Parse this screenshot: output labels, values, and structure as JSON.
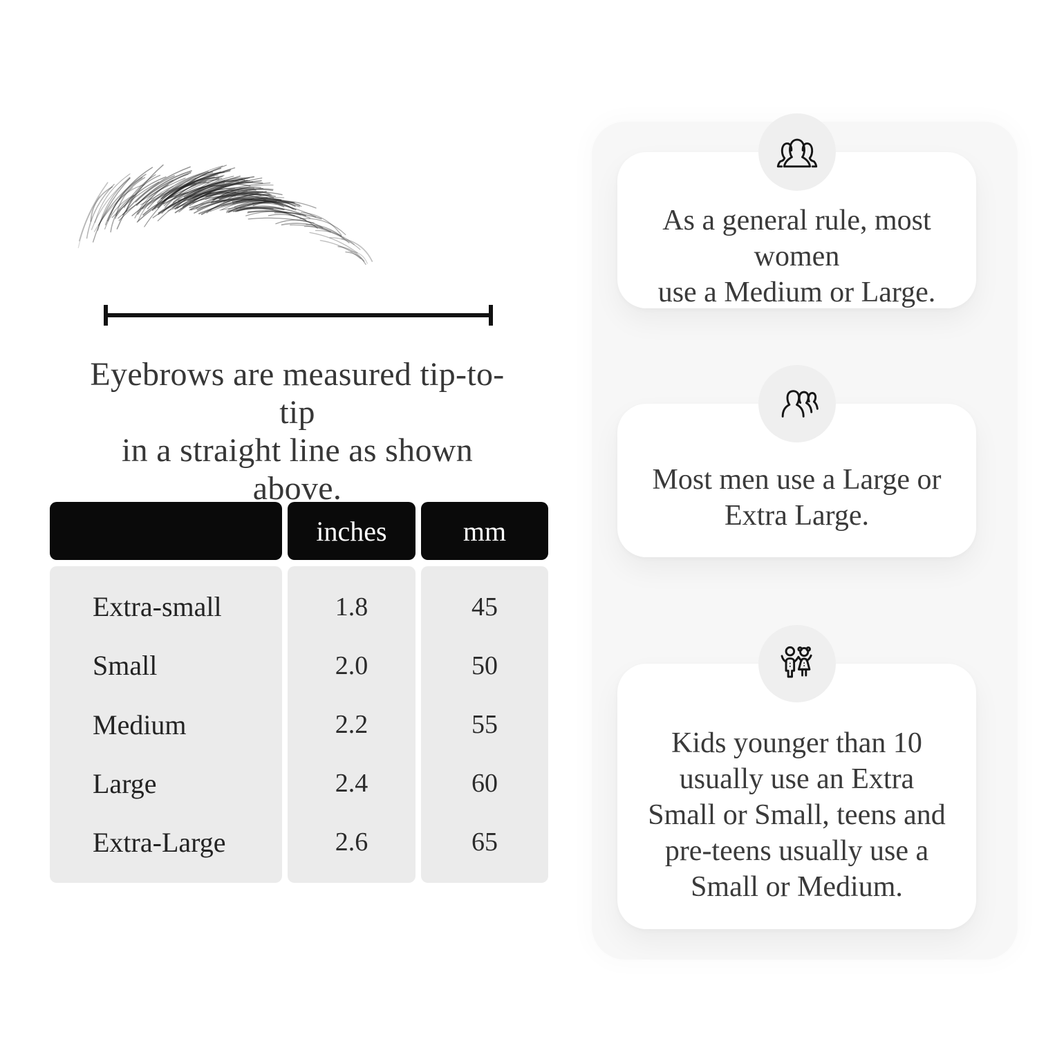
{
  "measurement_section": {
    "illustration": "eyebrow-sketch",
    "caption_line1": "Eyebrows are measured tip-to-tip",
    "caption_line2": "in a straight line as shown above."
  },
  "size_table": {
    "columns": [
      "",
      "inches",
      "mm"
    ],
    "rows": [
      {
        "label": "Extra-small",
        "inches": "1.8",
        "mm": "45"
      },
      {
        "label": "Small",
        "inches": "2.0",
        "mm": "50"
      },
      {
        "label": "Medium",
        "inches": "2.2",
        "mm": "55"
      },
      {
        "label": "Large",
        "inches": "2.4",
        "mm": "60"
      },
      {
        "label": "Extra-Large",
        "inches": "2.6",
        "mm": "65"
      }
    ]
  },
  "guide_cards": [
    {
      "icon": "women-group-icon",
      "lines": [
        "As a general rule, most women",
        "use a Medium or Large."
      ]
    },
    {
      "icon": "men-group-icon",
      "lines": [
        "Most men use a Large or",
        "Extra Large."
      ]
    },
    {
      "icon": "kids-icon",
      "lines": [
        "Kids younger than 10",
        "usually use an Extra",
        "Small or Small, teens and",
        "pre-teens usually use a",
        "Small or Medium."
      ]
    }
  ],
  "colors": {
    "page_bg": "#ffffff",
    "table_header_bg": "#0a0a0a",
    "table_header_text": "#ffffff",
    "table_body_bg": "#ebebeb",
    "card_bg": "#ffffff",
    "card_backdrop_bg": "#f7f7f7",
    "icon_circle_bg": "#efefef",
    "icon_stroke": "#161616",
    "text": "#373737",
    "measure_line": "#111111"
  }
}
